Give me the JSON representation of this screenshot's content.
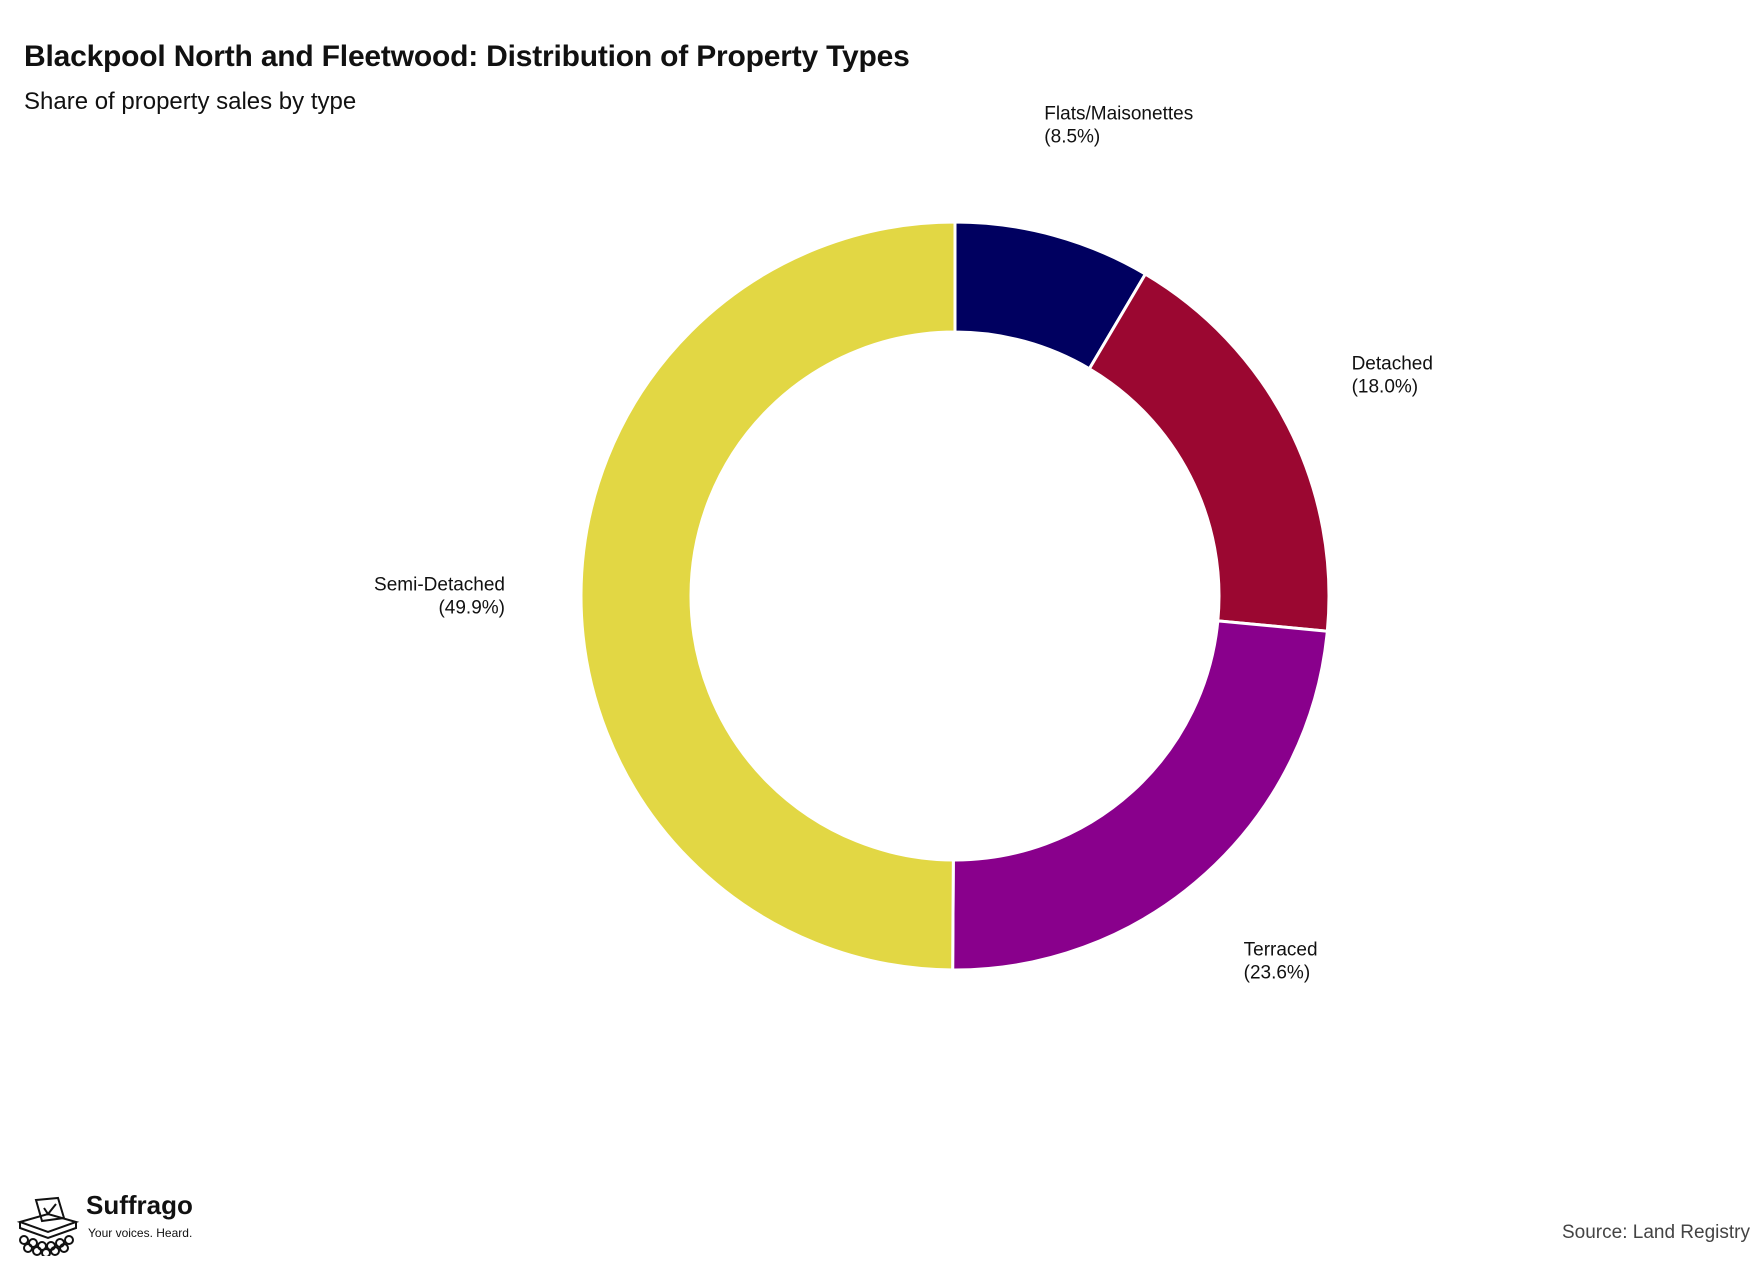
{
  "header": {
    "title": "Blackpool North and Fleetwood: Distribution of Property Types",
    "subtitle": "Share of property sales by type"
  },
  "chart_data": {
    "type": "pie",
    "variant": "donut",
    "start_angle": "12 o'clock",
    "direction": "clockwise",
    "slices": [
      {
        "label": "Flats/Maisonettes",
        "value": 8.5,
        "display": "(8.5%)",
        "color": "#000060"
      },
      {
        "label": "Detached",
        "value": 18.0,
        "display": "(18.0%)",
        "color": "#9b0731"
      },
      {
        "label": "Terraced",
        "value": 23.6,
        "display": "(23.6%)",
        "color": "#89008c"
      },
      {
        "label": "Semi-Detached",
        "value": 49.9,
        "display": "(49.9%)",
        "color": "#e2d744"
      }
    ]
  },
  "footer": {
    "brand": "Suffrago",
    "tagline": "Your voices. Heard.",
    "source": "Source: Land Registry"
  }
}
